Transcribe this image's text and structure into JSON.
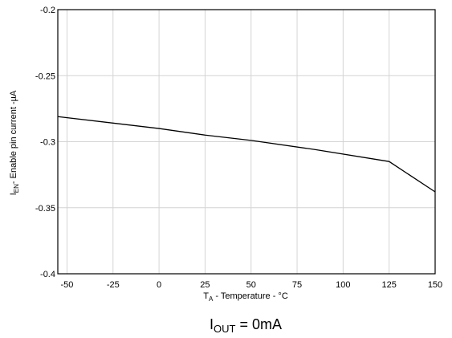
{
  "chart_data": {
    "type": "line",
    "xlabel": {
      "main": "T",
      "sub": "A",
      "rest": " - Temperature - °C"
    },
    "ylabel": {
      "main": "I",
      "sub": "EN",
      "rest": "- Enable pin current -µA"
    },
    "xlim": [
      -55,
      150
    ],
    "ylim": [
      -0.4,
      -0.2
    ],
    "xticks": [
      -50,
      -25,
      0,
      25,
      50,
      75,
      100,
      125,
      150
    ],
    "xtick_labels": [
      "-50",
      "-25",
      "0",
      "25",
      "50",
      "75",
      "100",
      "125",
      "150"
    ],
    "yticks": [
      -0.2,
      -0.25,
      -0.3,
      -0.35,
      -0.4
    ],
    "ytick_labels": [
      "-0.2",
      "-0.25",
      "-0.3",
      "-0.35",
      "-0.4"
    ],
    "grid": true,
    "series": [
      {
        "x": [
          -55,
          0,
          25,
          50,
          85,
          125,
          150
        ],
        "y": [
          -0.281,
          -0.29,
          -0.295,
          -0.299,
          -0.306,
          -0.315,
          -0.338
        ]
      }
    ]
  },
  "caption": {
    "main": "I",
    "sub": "OUT",
    "rest": " = 0mA"
  },
  "colors": {
    "line": "#000000",
    "grid": "#d4d4d4",
    "frame": "#000000"
  }
}
